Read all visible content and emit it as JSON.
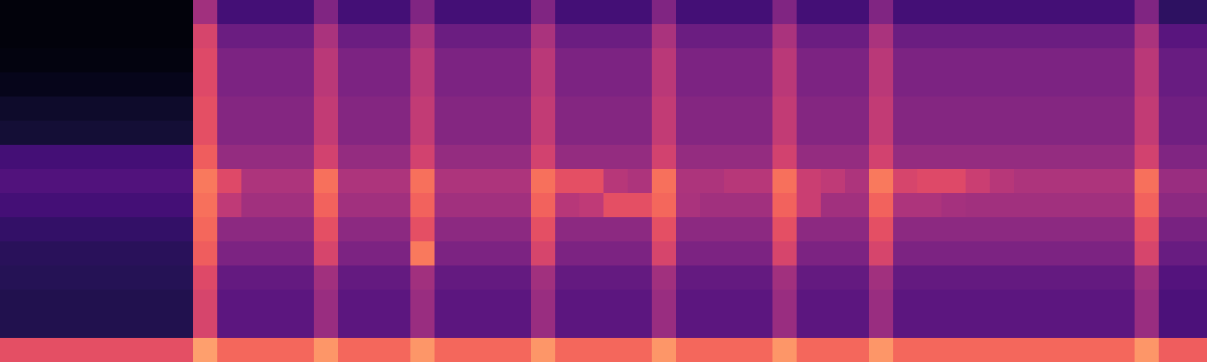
{
  "chart_data": {
    "type": "heatmap",
    "color": "magma",
    "zlim": [
      0,
      100
    ],
    "tick_labels": false,
    "cells": [
      [
        2,
        2,
        2,
        2,
        2,
        2,
        2,
        2,
        45,
        22,
        22,
        22,
        22,
        37,
        22,
        22,
        22,
        37,
        22,
        22,
        22,
        22,
        37,
        22,
        22,
        22,
        22,
        37,
        22,
        22,
        22,
        22,
        37,
        22,
        22,
        22,
        37,
        22,
        22,
        22,
        22,
        22,
        22,
        22,
        22,
        22,
        22,
        37,
        17,
        17
      ],
      [
        2,
        2,
        2,
        2,
        2,
        2,
        2,
        2,
        58,
        32,
        32,
        32,
        32,
        47,
        32,
        32,
        32,
        47,
        32,
        32,
        32,
        32,
        47,
        32,
        32,
        32,
        32,
        47,
        32,
        32,
        32,
        32,
        47,
        32,
        32,
        32,
        47,
        32,
        32,
        32,
        32,
        32,
        32,
        32,
        32,
        32,
        32,
        47,
        27,
        27
      ],
      [
        3,
        3,
        3,
        3,
        3,
        3,
        3,
        3,
        60,
        36,
        36,
        36,
        36,
        51,
        36,
        36,
        36,
        51,
        36,
        36,
        36,
        36,
        51,
        36,
        36,
        36,
        36,
        51,
        36,
        36,
        36,
        36,
        51,
        36,
        36,
        36,
        51,
        36,
        36,
        36,
        36,
        36,
        36,
        36,
        36,
        36,
        36,
        51,
        31,
        31
      ],
      [
        5,
        5,
        5,
        5,
        5,
        5,
        5,
        5,
        60,
        36,
        36,
        36,
        36,
        51,
        36,
        36,
        36,
        51,
        36,
        36,
        36,
        36,
        51,
        36,
        36,
        36,
        36,
        51,
        36,
        36,
        36,
        36,
        51,
        36,
        36,
        36,
        51,
        36,
        36,
        36,
        36,
        36,
        36,
        36,
        36,
        36,
        36,
        51,
        31,
        31
      ],
      [
        8,
        8,
        8,
        8,
        8,
        8,
        8,
        8,
        62,
        38,
        38,
        38,
        38,
        53,
        38,
        38,
        38,
        53,
        38,
        38,
        38,
        38,
        53,
        38,
        38,
        38,
        38,
        53,
        38,
        38,
        38,
        38,
        53,
        38,
        38,
        38,
        53,
        38,
        38,
        38,
        38,
        38,
        38,
        38,
        38,
        38,
        38,
        53,
        33,
        33
      ],
      [
        10,
        10,
        10,
        10,
        10,
        10,
        10,
        10,
        62,
        38,
        38,
        38,
        38,
        53,
        38,
        38,
        38,
        53,
        38,
        38,
        38,
        38,
        53,
        38,
        38,
        38,
        38,
        53,
        38,
        38,
        38,
        38,
        53,
        38,
        38,
        38,
        53,
        38,
        38,
        38,
        38,
        38,
        38,
        38,
        38,
        38,
        38,
        53,
        33,
        33
      ],
      [
        22,
        22,
        22,
        22,
        22,
        22,
        22,
        22,
        66,
        42,
        42,
        42,
        42,
        57,
        42,
        42,
        42,
        57,
        42,
        42,
        42,
        42,
        57,
        42,
        42,
        42,
        42,
        57,
        42,
        42,
        42,
        42,
        57,
        42,
        42,
        42,
        57,
        42,
        42,
        42,
        42,
        42,
        42,
        42,
        42,
        42,
        42,
        57,
        37,
        37
      ],
      [
        25,
        25,
        25,
        25,
        25,
        25,
        25,
        25,
        72,
        60,
        48,
        48,
        48,
        70,
        48,
        48,
        48,
        70,
        48,
        48,
        48,
        48,
        70,
        62,
        62,
        50,
        48,
        70,
        48,
        48,
        50,
        50,
        70,
        55,
        52,
        48,
        72,
        58,
        60,
        60,
        55,
        50,
        48,
        48,
        48,
        48,
        48,
        70,
        43,
        43
      ],
      [
        22,
        22,
        22,
        22,
        22,
        22,
        22,
        22,
        70,
        52,
        45,
        45,
        45,
        67,
        45,
        45,
        45,
        67,
        45,
        45,
        45,
        45,
        67,
        50,
        52,
        62,
        62,
        68,
        47,
        45,
        45,
        45,
        67,
        55,
        45,
        45,
        67,
        48,
        48,
        46,
        45,
        45,
        45,
        45,
        45,
        45,
        45,
        67,
        40,
        40
      ],
      [
        18,
        18,
        18,
        18,
        18,
        18,
        18,
        18,
        68,
        40,
        40,
        40,
        40,
        62,
        40,
        40,
        40,
        62,
        40,
        40,
        40,
        40,
        62,
        40,
        40,
        40,
        40,
        62,
        40,
        40,
        40,
        40,
        62,
        40,
        40,
        40,
        62,
        40,
        40,
        40,
        40,
        40,
        40,
        40,
        40,
        40,
        40,
        62,
        35,
        35
      ],
      [
        16,
        16,
        16,
        16,
        16,
        16,
        16,
        16,
        66,
        36,
        36,
        36,
        36,
        58,
        36,
        36,
        36,
        72,
        36,
        36,
        36,
        36,
        58,
        36,
        36,
        36,
        36,
        58,
        36,
        36,
        36,
        36,
        58,
        36,
        36,
        36,
        58,
        36,
        36,
        36,
        36,
        36,
        36,
        36,
        36,
        36,
        36,
        58,
        31,
        31
      ],
      [
        15,
        15,
        15,
        15,
        15,
        15,
        15,
        15,
        60,
        30,
        30,
        30,
        30,
        45,
        30,
        30,
        30,
        45,
        30,
        30,
        30,
        30,
        45,
        30,
        30,
        30,
        30,
        45,
        30,
        30,
        30,
        30,
        45,
        30,
        30,
        30,
        45,
        30,
        30,
        30,
        30,
        30,
        30,
        30,
        30,
        30,
        30,
        45,
        26,
        26
      ],
      [
        14,
        14,
        14,
        14,
        14,
        14,
        14,
        14,
        58,
        28,
        28,
        28,
        28,
        43,
        28,
        28,
        28,
        43,
        28,
        28,
        28,
        28,
        43,
        28,
        28,
        28,
        28,
        43,
        28,
        28,
        28,
        28,
        43,
        28,
        28,
        28,
        43,
        28,
        28,
        28,
        28,
        28,
        28,
        28,
        28,
        28,
        28,
        43,
        24,
        24
      ],
      [
        14,
        14,
        14,
        14,
        14,
        14,
        14,
        14,
        58,
        28,
        28,
        28,
        28,
        43,
        28,
        28,
        28,
        43,
        28,
        28,
        28,
        28,
        43,
        28,
        28,
        28,
        28,
        43,
        28,
        28,
        28,
        28,
        43,
        28,
        28,
        28,
        43,
        28,
        28,
        28,
        28,
        28,
        28,
        28,
        28,
        28,
        28,
        43,
        24,
        24
      ],
      [
        62,
        62,
        62,
        62,
        62,
        62,
        62,
        62,
        80,
        68,
        68,
        68,
        68,
        78,
        68,
        68,
        68,
        78,
        68,
        68,
        68,
        68,
        78,
        68,
        68,
        68,
        68,
        78,
        68,
        68,
        68,
        68,
        78,
        68,
        68,
        68,
        78,
        68,
        68,
        68,
        68,
        68,
        68,
        68,
        68,
        68,
        68,
        78,
        66,
        66
      ]
    ]
  }
}
